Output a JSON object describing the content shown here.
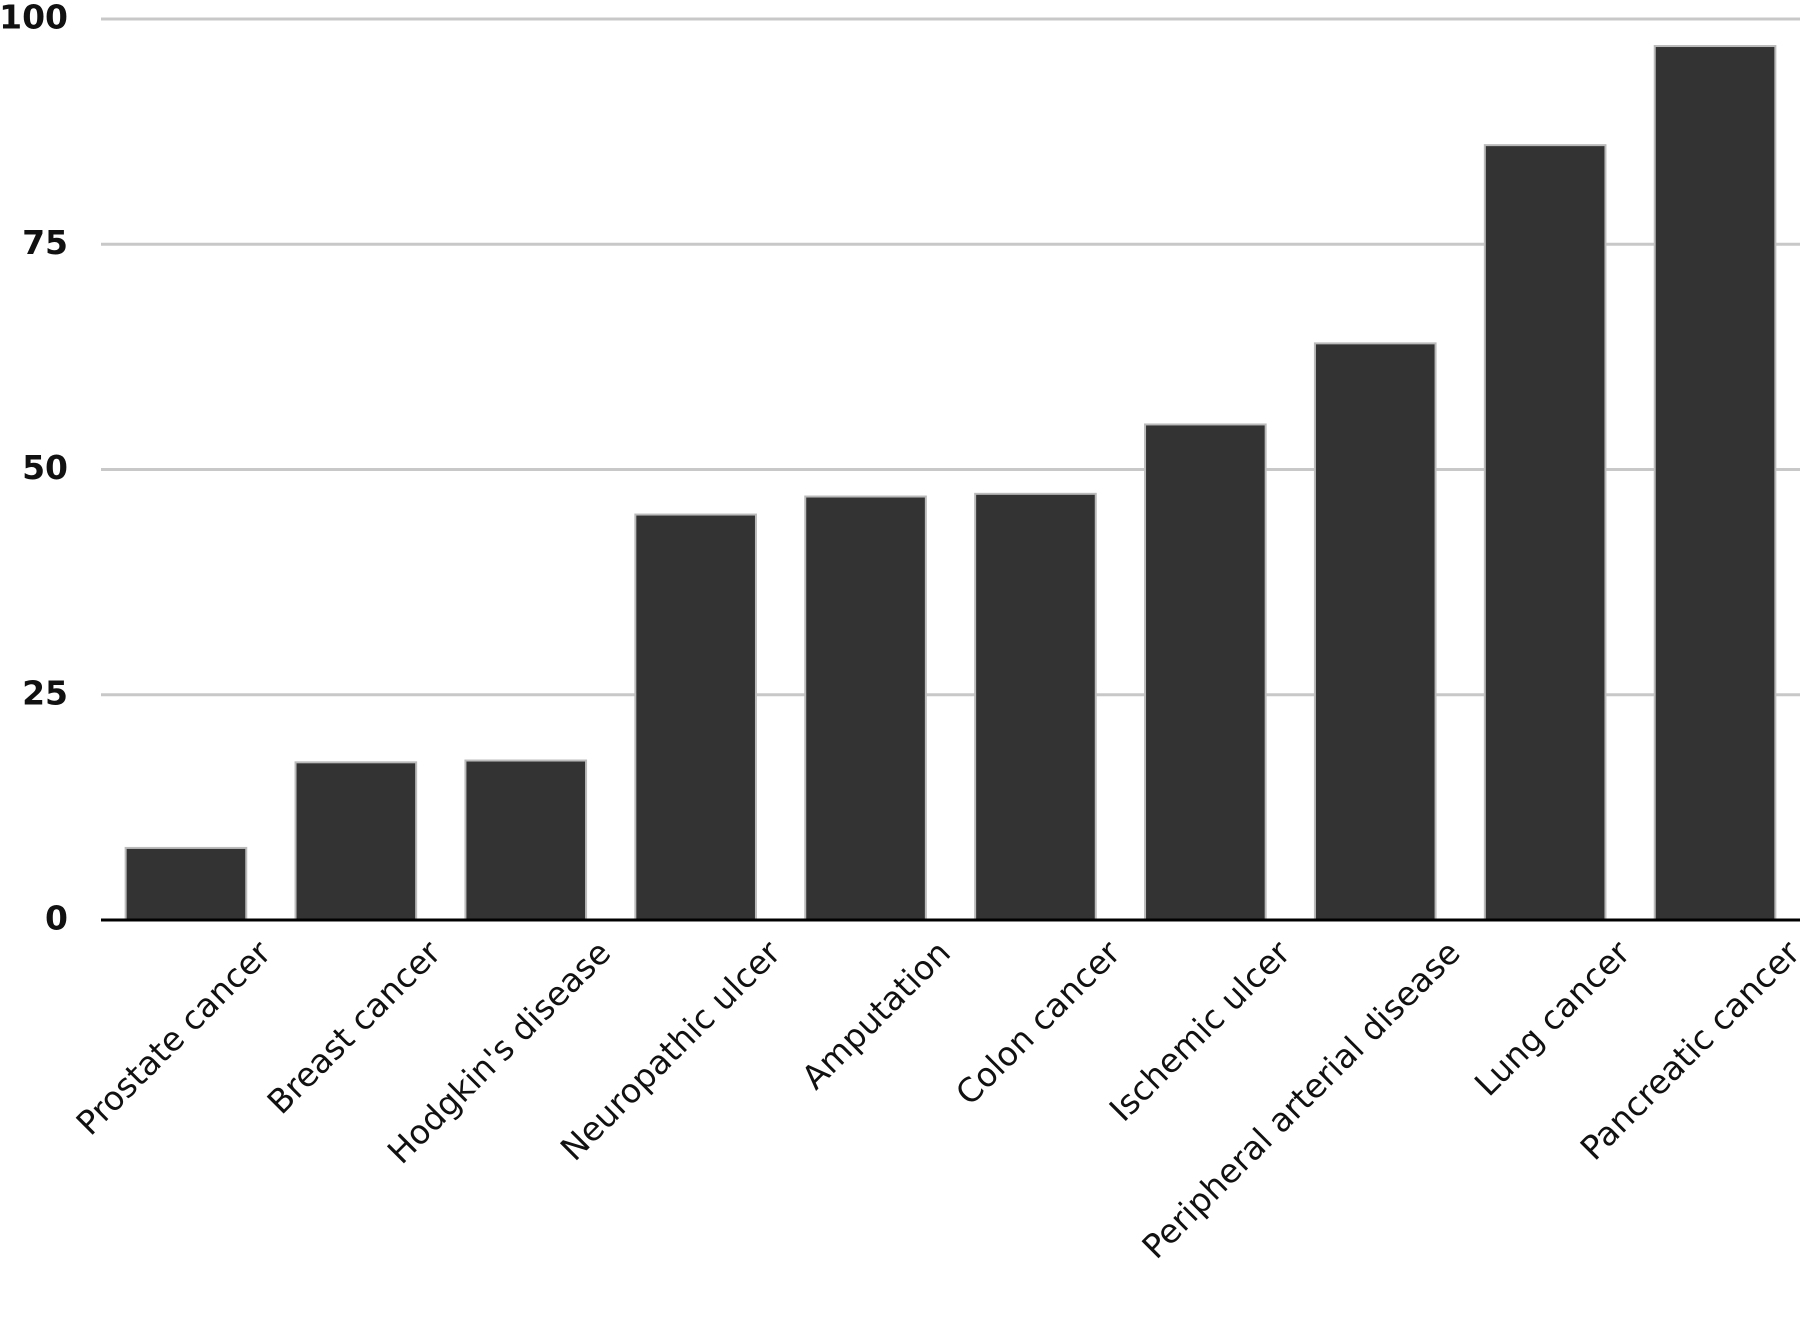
{
  "chart_data": {
    "type": "bar",
    "categories": [
      "Prostate cancer",
      "Breast cancer",
      "Hodgkin's disease",
      "Neuropathic ulcer",
      "Amputation",
      "Colon cancer",
      "Ischemic ulcer",
      "Peripheral arterial disease",
      "Lung cancer",
      "Pancreatic cancer"
    ],
    "values": [
      8,
      17.5,
      17.7,
      45,
      47,
      47.3,
      55,
      64,
      86,
      97
    ],
    "color": "#333333",
    "ylim": [
      0,
      100
    ],
    "yticks": [
      0,
      25,
      50,
      75,
      100
    ],
    "grid": true
  }
}
